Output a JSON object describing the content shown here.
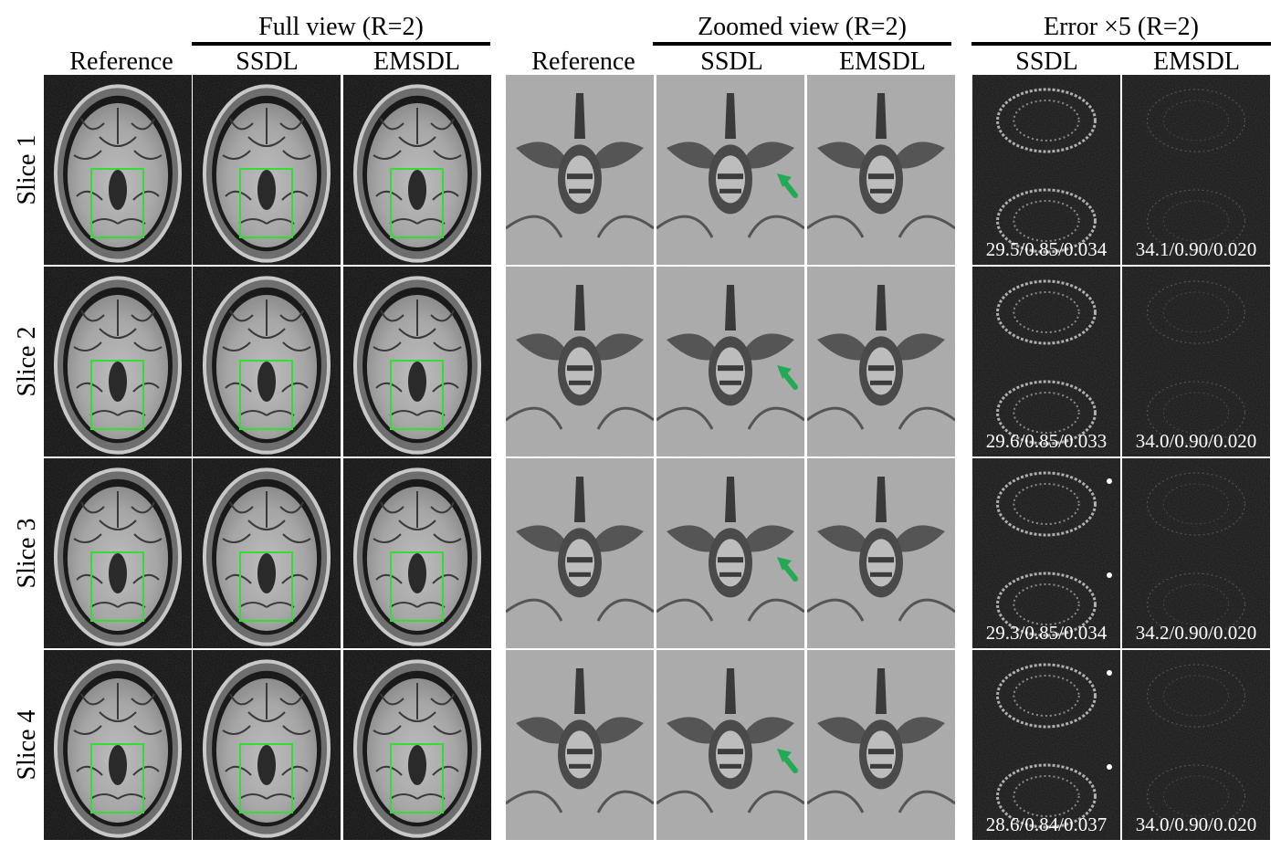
{
  "headers": {
    "full_view": "Full view (R=2)",
    "zoomed_view": "Zoomed view (R=2)",
    "error": "Error ×5 (R=2)",
    "reference_full": "Reference",
    "ssdl_full": "SSDL",
    "emsdl_full": "EMSDL",
    "reference_zoom": "Reference",
    "ssdl_zoom": "SSDL",
    "emsdl_zoom": "EMSDL",
    "ssdl_err": "SSDL",
    "emsdl_err": "EMSDL"
  },
  "rows": [
    {
      "label": "Slice 1",
      "ssdl_metrics": "29.5/0.85/0.034",
      "emsdl_metrics": "34.1/0.90/0.020"
    },
    {
      "label": "Slice 2",
      "ssdl_metrics": "29.6/0.85/0.033",
      "emsdl_metrics": "34.0/0.90/0.020"
    },
    {
      "label": "Slice 3",
      "ssdl_metrics": "29.3/0.85/0.034",
      "emsdl_metrics": "34.2/0.90/0.020"
    },
    {
      "label": "Slice 4",
      "ssdl_metrics": "28.6/0.84/0.037",
      "emsdl_metrics": "34.0/0.90/0.020"
    }
  ],
  "colors": {
    "roi_box": "#33dd33",
    "arrow": "#22aa55",
    "background": "#ffffff",
    "panel_dark": "#0a0a0a"
  },
  "icons": {
    "roi": "green-rectangle",
    "pointer": "green-arrow-icon"
  }
}
